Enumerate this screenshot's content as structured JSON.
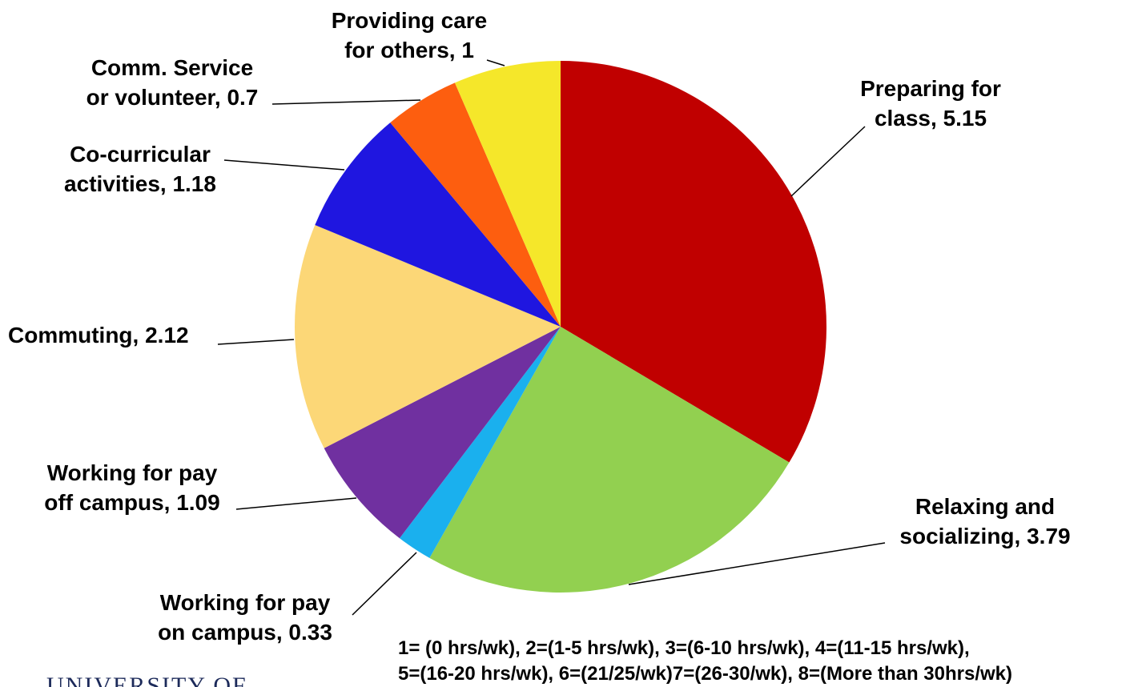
{
  "chart_data": {
    "type": "pie",
    "values": [
      5.15,
      3.79,
      0.33,
      1.09,
      2.12,
      1.18,
      0.7,
      1
    ],
    "value_labels": [
      [
        "Preparing for",
        "class, 5.15"
      ],
      [
        "Relaxing and",
        "socializing, 3.79"
      ],
      [
        "Working for pay",
        "on campus, 0.33"
      ],
      [
        "Working for pay",
        "off campus, 1.09"
      ],
      [
        "Commuting, 2.12"
      ],
      [
        "Co-curricular",
        "activities, 1.18"
      ],
      [
        "Comm. Service",
        "or volunteer, 0.7"
      ],
      [
        "Providing care",
        "for others, 1"
      ]
    ],
    "colors": [
      "#c00000",
      "#92d050",
      "#1ab0ee",
      "#7030a0",
      "#fcd777",
      "#1f16e0",
      "#fd5e0f",
      "#f5e72a"
    ],
    "footnote": [
      "1= (0 hrs/wk),  2=(1-5 hrs/wk),  3=(6-10 hrs/wk),  4=(11-15 hrs/wk),",
      "5=(16-20 hrs/wk),  6=(21/25/wk)7=(26-30/wk),  8=(More than 30hrs/wk)"
    ],
    "logo_text": "UNIVERSITY OF"
  }
}
